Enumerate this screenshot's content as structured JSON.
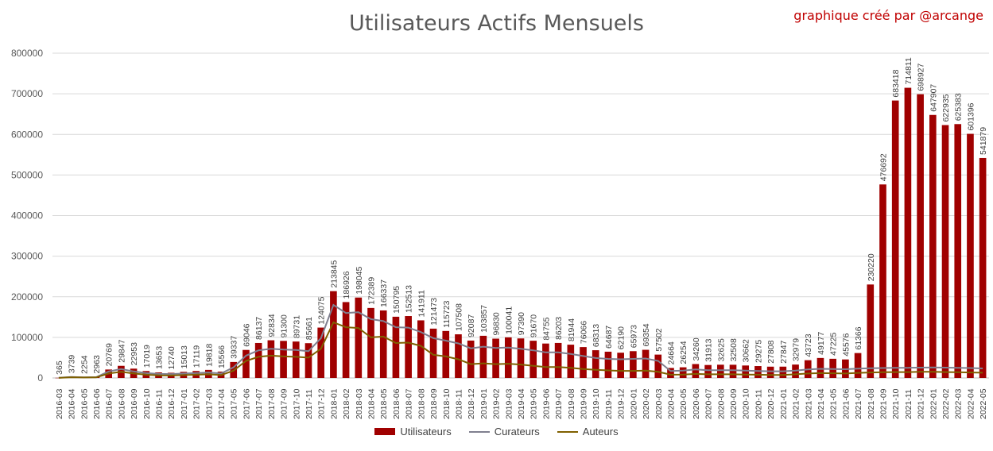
{
  "chart_data": {
    "type": "bar",
    "title": "Utilisateurs Actifs Mensuels",
    "credit": "graphique créé par  @arcange",
    "ylim": [
      0,
      800000
    ],
    "yticks": [
      0,
      100000,
      200000,
      300000,
      400000,
      500000,
      600000,
      700000,
      800000
    ],
    "grid": true,
    "legend_position": "bottom",
    "colors": {
      "Utilisateurs": "#a00000",
      "Curateurs": "#7f7f8f",
      "Auteurs": "#7f6000"
    },
    "categories": [
      "2016-03",
      "2016-04",
      "2016-05",
      "2016-06",
      "2016-07",
      "2016-08",
      "2016-09",
      "2016-10",
      "2016-11",
      "2016-12",
      "2017-01",
      "2017-02",
      "2017-03",
      "2017-04",
      "2017-05",
      "2017-06",
      "2017-07",
      "2017-08",
      "2017-09",
      "2017-10",
      "2017-11",
      "2017-12",
      "2018-01",
      "2018-02",
      "2018-03",
      "2018-04",
      "2018-05",
      "2018-06",
      "2018-07",
      "2018-08",
      "2018-09",
      "2018-10",
      "2018-11",
      "2018-12",
      "2019-01",
      "2019-02",
      "2019-03",
      "2019-04",
      "2019-05",
      "2019-06",
      "2019-07",
      "2019-08",
      "2019-09",
      "2019-10",
      "2019-11",
      "2019-12",
      "2020-01",
      "2020-02",
      "2020-03",
      "2020-04",
      "2020-05",
      "2020-06",
      "2020-07",
      "2020-08",
      "2020-09",
      "2020-10",
      "2020-11",
      "2020-12",
      "2021-01",
      "2021-02",
      "2021-03",
      "2021-04",
      "2021-05",
      "2021-06",
      "2021-07",
      "2021-08",
      "2021-09",
      "2021-10",
      "2021-11",
      "2021-12",
      "2022-01",
      "2022-02",
      "2022-03",
      "2022-04",
      "2022-05"
    ],
    "series": [
      {
        "name": "Utilisateurs",
        "type": "bar",
        "values": [
          365,
          3739,
          2254,
          2963,
          20769,
          29847,
          22953,
          17019,
          13653,
          12740,
          15013,
          17119,
          19818,
          15566,
          39337,
          69046,
          86137,
          92834,
          91300,
          89731,
          85661,
          124075,
          213845,
          186926,
          198045,
          172389,
          166337,
          150795,
          152513,
          141911,
          121473,
          115723,
          107508,
          92087,
          103857,
          96830,
          100041,
          97390,
          91670,
          84755,
          86203,
          81944,
          76066,
          68313,
          64687,
          62190,
          65973,
          69354,
          57502,
          24664,
          26254,
          34260,
          31913,
          32625,
          32508,
          30662,
          29275,
          27808,
          27847,
          32979,
          43723,
          49177,
          47225,
          45576,
          61366,
          230220,
          476692,
          683418,
          714811,
          698927,
          647907,
          622935,
          625383,
          601396,
          541879
        ]
      },
      {
        "name": "Curateurs",
        "type": "line",
        "values": [
          300,
          2500,
          1500,
          2000,
          16000,
          22000,
          16000,
          12000,
          10000,
          9500,
          11000,
          12000,
          13500,
          11000,
          26000,
          55000,
          68000,
          72000,
          70000,
          69000,
          66000,
          98000,
          180000,
          160000,
          162000,
          145000,
          140000,
          125000,
          124000,
          113000,
          98000,
          92000,
          85000,
          73000,
          77000,
          74000,
          75000,
          72000,
          68000,
          63000,
          63000,
          59000,
          54000,
          49000,
          47000,
          46000,
          47000,
          48000,
          42000,
          17000,
          18000,
          21000,
          19000,
          19000,
          19000,
          18000,
          17000,
          16500,
          16500,
          18000,
          21000,
          22500,
          22000,
          21500,
          23000,
          24000,
          24500,
          25000,
          25000,
          25500,
          26000,
          25500,
          25000,
          24500,
          23500
        ]
      },
      {
        "name": "Auteurs",
        "type": "line",
        "values": [
          250,
          1800,
          1100,
          1400,
          11000,
          15000,
          11000,
          8000,
          6500,
          6000,
          7000,
          8000,
          9000,
          7000,
          18000,
          42000,
          52000,
          55000,
          53000,
          52000,
          50000,
          72000,
          137000,
          125000,
          123000,
          100000,
          102000,
          86000,
          87000,
          79000,
          57000,
          53000,
          46000,
          34000,
          36000,
          34000,
          35000,
          33000,
          30000,
          27000,
          27000,
          25000,
          22000,
          20000,
          18500,
          17500,
          17500,
          18000,
          15000,
          8000,
          8500,
          10000,
          9000,
          9000,
          9000,
          8500,
          8000,
          7500,
          7500,
          9000,
          11000,
          12000,
          11500,
          11000,
          12500,
          13500,
          14000,
          14500,
          14500,
          15000,
          15000,
          14500,
          14000,
          13500,
          13000
        ]
      }
    ]
  }
}
